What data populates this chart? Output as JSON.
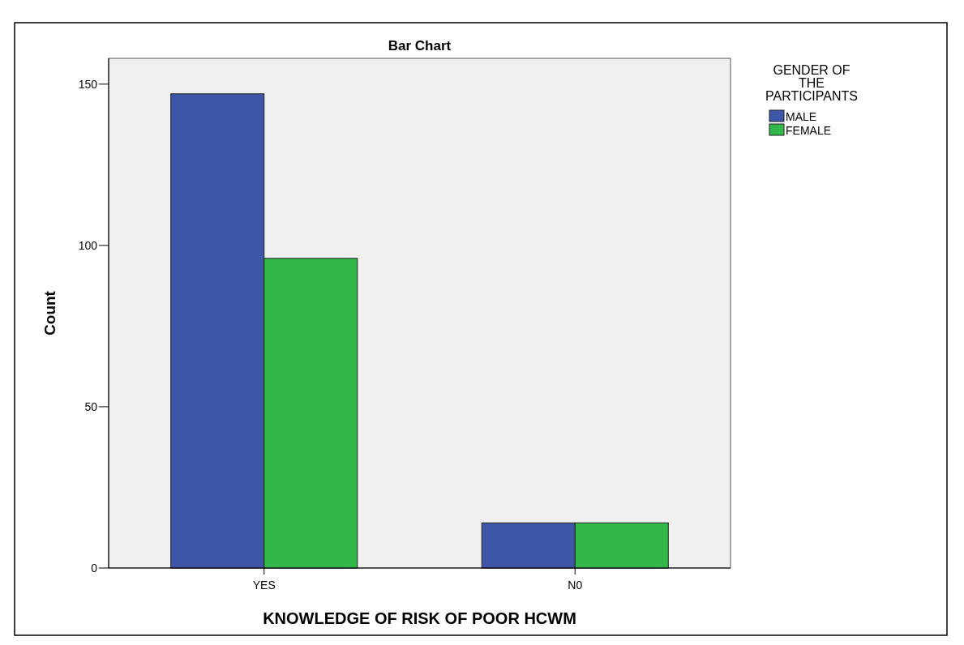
{
  "chart_data": {
    "type": "bar",
    "title": "Bar Chart",
    "xlabel": "KNOWLEDGE OF RISK OF POOR HCWM",
    "ylabel": "Count",
    "legend_title": "GENDER OF THE PARTICIPANTS",
    "categories": [
      "YES",
      "N0"
    ],
    "series": [
      {
        "name": "MALE",
        "color": "#3d56a8",
        "values": [
          147,
          14
        ]
      },
      {
        "name": "FEMALE",
        "color": "#31b74a",
        "values": [
          96,
          14
        ]
      }
    ],
    "ylim": [
      0,
      158
    ],
    "yticks": [
      0,
      50,
      100,
      150
    ],
    "grid": false,
    "legend": "right"
  }
}
